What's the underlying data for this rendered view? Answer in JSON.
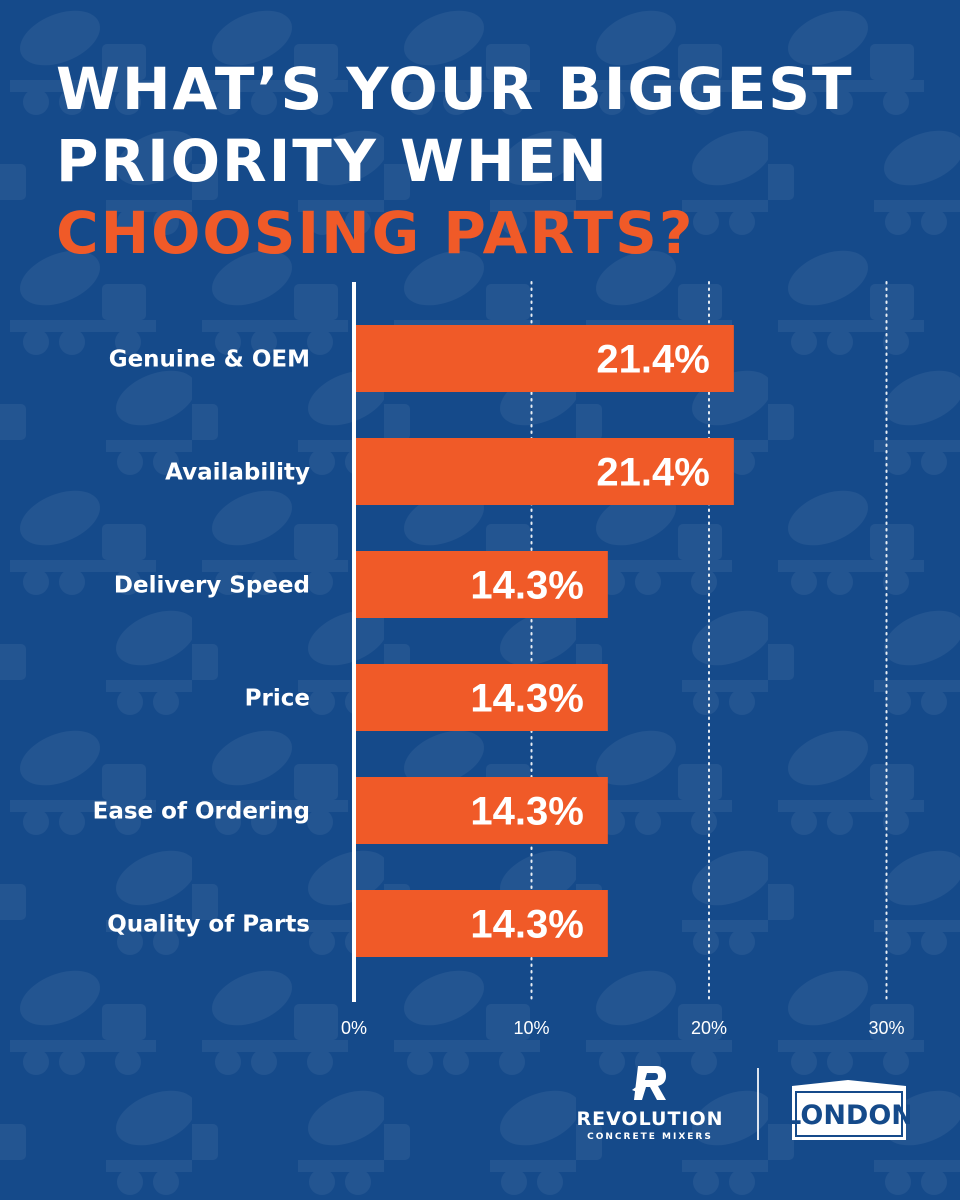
{
  "title": {
    "line1": "WHAT’S YOUR BIGGEST",
    "line2": "PRIORITY WHEN",
    "line3": "CHOOSING PARTS?"
  },
  "colors": {
    "background": "#154a8a",
    "accent": "#f05a28",
    "text": "#ffffff",
    "gridline": "#ffffff"
  },
  "chart_data": {
    "type": "bar",
    "orientation": "horizontal",
    "title": "WHAT’S YOUR BIGGEST PRIORITY WHEN CHOOSING PARTS?",
    "categories": [
      "Genuine & OEM",
      "Availability",
      "Delivery Speed",
      "Price",
      "Ease of Ordering",
      "Quality of Parts"
    ],
    "values": [
      21.4,
      21.4,
      14.3,
      14.3,
      14.3,
      14.3
    ],
    "value_labels": [
      "21.4%",
      "21.4%",
      "14.3%",
      "14.3%",
      "14.3%",
      "14.3%"
    ],
    "xlim": [
      0,
      30
    ],
    "xticks": [
      0,
      10,
      20,
      30
    ],
    "xtick_labels": [
      "0%",
      "10%",
      "20%",
      "30%"
    ],
    "xlabel": "",
    "ylabel": "",
    "grid": "dotted vertical",
    "bar_color": "#f05a28"
  },
  "logos": {
    "revolution_name": "REVOLUTION",
    "revolution_tm": "™",
    "revolution_sub": "CONCRETE MIXERS",
    "london_name": "LONDON",
    "london_tm": "™"
  }
}
